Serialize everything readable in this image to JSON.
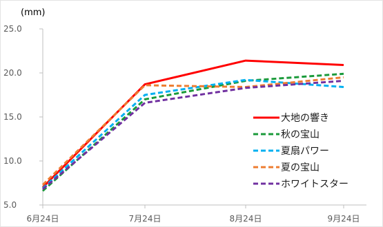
{
  "chart_data": {
    "type": "line",
    "ylabel": "(mm)",
    "ylim": [
      5.0,
      25.0
    ],
    "yticks": [
      "25.0",
      "20.0",
      "15.0",
      "10.0",
      "5.0"
    ],
    "ytick_values": [
      25,
      20,
      15,
      10,
      5
    ],
    "categories": [
      "6月24日",
      "7月24日",
      "8月24日",
      "9月24日"
    ],
    "grid": false,
    "legend_position": "right",
    "series": [
      {
        "name": "大地の響き",
        "values": [
          7.0,
          18.7,
          21.4,
          20.9
        ],
        "color": "#ff0000",
        "style": "solid"
      },
      {
        "name": "秋の宝山",
        "values": [
          6.6,
          17.0,
          19.1,
          19.9
        ],
        "color": "#1a9a3a",
        "style": "dashed"
      },
      {
        "name": "夏扇パワー",
        "values": [
          6.9,
          17.5,
          19.2,
          18.4
        ],
        "color": "#00b0f0",
        "style": "dashed"
      },
      {
        "name": "夏の宝山",
        "values": [
          7.3,
          18.6,
          18.4,
          19.5
        ],
        "color": "#ed7d31",
        "style": "dashed"
      },
      {
        "name": "ホワイトスター",
        "values": [
          6.8,
          16.6,
          18.3,
          19.1
        ],
        "color": "#7030a0",
        "style": "dashed"
      }
    ]
  }
}
